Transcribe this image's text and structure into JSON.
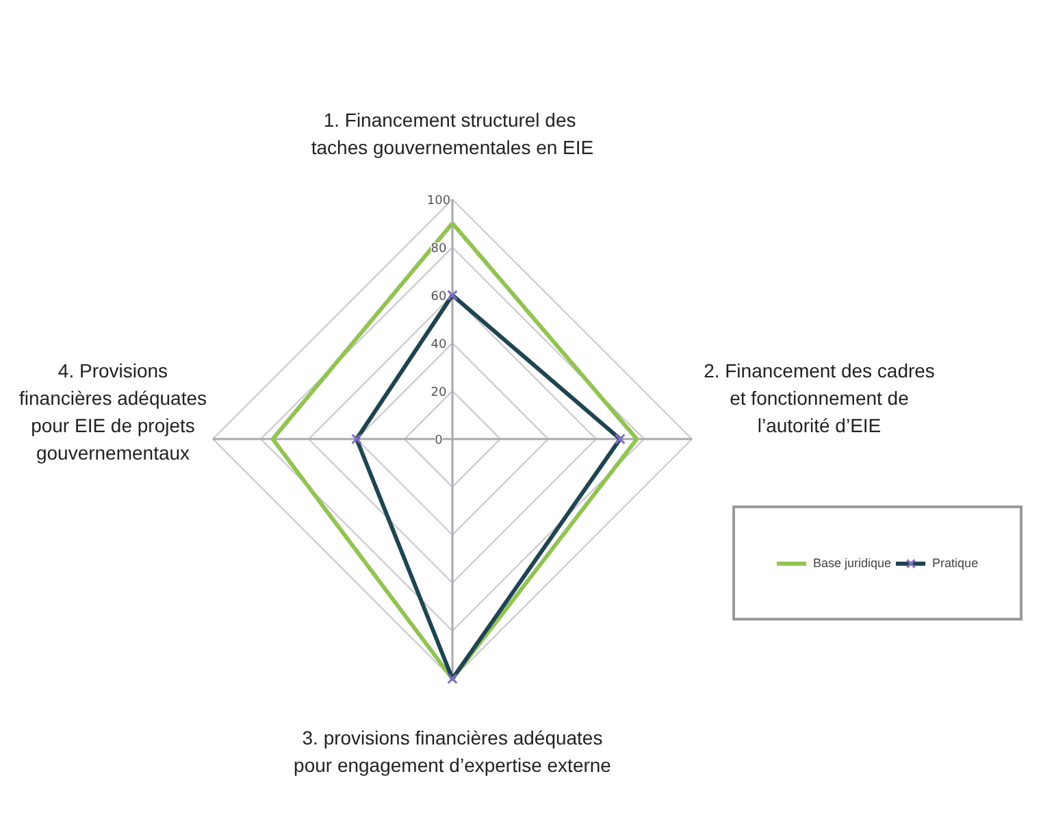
{
  "chart_data": {
    "type": "radar",
    "categories": [
      "1. Financement structurel  des\ntaches gouvernementales en EIE",
      "2. Financement des cadres\net fonctionnement de\nl’autorité d’EIE",
      "3. provisions financières adéquates\npour engagement d’expertise externe",
      "4. Provisions\nfinancières adéquates\npour EIE de projets\ngouvernementaux"
    ],
    "series": [
      {
        "name": "Base juridique",
        "color": "#92c353",
        "values": [
          90,
          77,
          100,
          75
        ],
        "marker": "none"
      },
      {
        "name": "Pratique",
        "color": "#1f4452",
        "values": [
          60,
          70,
          100,
          40
        ],
        "marker": "cross"
      }
    ],
    "ylim": [
      0,
      100
    ],
    "yticks": [
      0,
      20,
      40,
      60,
      80,
      100
    ],
    "legend": "right",
    "grid": true
  }
}
